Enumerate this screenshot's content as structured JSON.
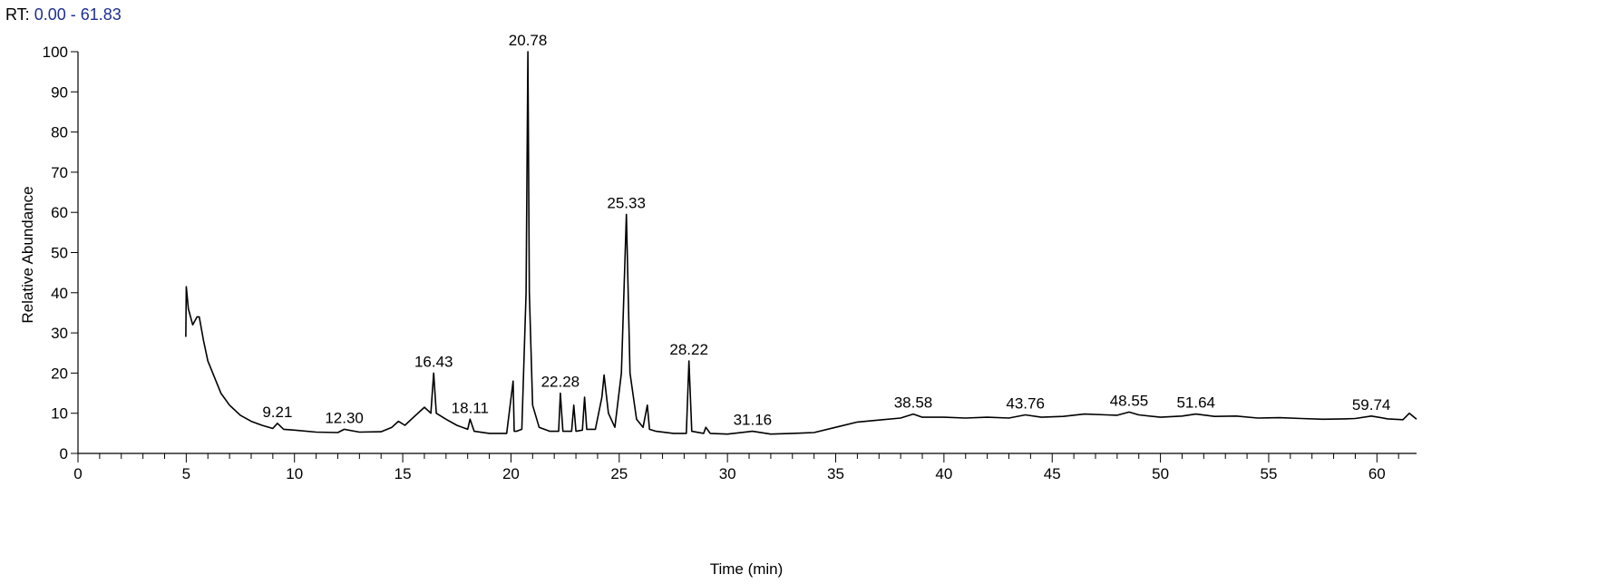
{
  "header": {
    "rt_label": "RT:",
    "rt_range": "0.00 - 61.83"
  },
  "colors": {
    "trace": "#000000",
    "axis": "#000000",
    "rt_range": "#1c2f8f"
  },
  "chart_data": {
    "type": "line",
    "title": "",
    "xlabel": "Time (min)",
    "ylabel": "Relative Abundance",
    "xlim": [
      0,
      61.83
    ],
    "ylim": [
      0,
      100
    ],
    "x_ticks": [
      0,
      5,
      10,
      15,
      20,
      25,
      30,
      35,
      40,
      45,
      50,
      55,
      60
    ],
    "y_ticks": [
      0,
      10,
      20,
      30,
      40,
      50,
      60,
      70,
      80,
      90,
      100
    ],
    "grid": false,
    "legend": "none",
    "series": [
      {
        "x": [
          4.98,
          5.0,
          5.1,
          5.3,
          5.5,
          5.6,
          5.8,
          6.0,
          6.3,
          6.6,
          7.0,
          7.5,
          8.0,
          8.5,
          9.0,
          9.21,
          9.5,
          10.0,
          11.0,
          12.0,
          12.3,
          13.0,
          14.0,
          14.5,
          14.8,
          15.1,
          15.4,
          15.8,
          16.0,
          16.3,
          16.43,
          16.55,
          17.0,
          17.5,
          18.0,
          18.11,
          18.3,
          19.0,
          19.8,
          20.1,
          20.15,
          20.25,
          20.5,
          20.7,
          20.78,
          20.85,
          21.0,
          21.3,
          21.8,
          22.2,
          22.28,
          22.4,
          22.8,
          22.9,
          23.0,
          23.3,
          23.4,
          23.5,
          23.9,
          24.2,
          24.3,
          24.5,
          24.8,
          25.1,
          25.33,
          25.5,
          25.8,
          26.1,
          26.3,
          26.4,
          26.7,
          27.5,
          28.1,
          28.22,
          28.35,
          28.9,
          29.0,
          29.2,
          30.0,
          31.16,
          32.0,
          33.0,
          34.0,
          35.0,
          36.0,
          37.0,
          38.0,
          38.58,
          39.0,
          40.0,
          41.0,
          42.0,
          43.0,
          43.76,
          44.5,
          45.5,
          46.5,
          47.5,
          48.0,
          48.55,
          49.0,
          50.0,
          51.0,
          51.64,
          52.5,
          53.5,
          54.5,
          55.5,
          56.5,
          57.5,
          58.5,
          59.0,
          59.74,
          60.5,
          61.2,
          61.5,
          61.83
        ],
        "y": [
          29.0,
          41.5,
          36.0,
          32.0,
          34.0,
          34.0,
          28.0,
          23.0,
          19.0,
          15.0,
          12.0,
          9.5,
          8.0,
          7.0,
          6.2,
          7.5,
          6.0,
          5.8,
          5.3,
          5.2,
          6.0,
          5.3,
          5.4,
          6.5,
          8.0,
          7.0,
          8.5,
          10.5,
          11.5,
          10.0,
          20.0,
          10.0,
          8.5,
          7.0,
          6.0,
          8.5,
          5.5,
          5.0,
          5.0,
          18.0,
          5.5,
          5.5,
          6.0,
          40.0,
          100.0,
          40.0,
          12.0,
          6.5,
          5.5,
          5.5,
          15.0,
          5.5,
          5.5,
          12.0,
          5.5,
          5.8,
          14.0,
          6.0,
          6.0,
          14.0,
          19.5,
          10.0,
          6.5,
          20.0,
          59.5,
          20.0,
          8.5,
          6.5,
          12.0,
          6.0,
          5.5,
          5.0,
          5.0,
          23.0,
          5.5,
          5.0,
          6.5,
          5.0,
          4.8,
          5.5,
          4.8,
          5.0,
          5.2,
          6.5,
          7.8,
          8.3,
          8.8,
          9.8,
          9.0,
          9.0,
          8.8,
          9.0,
          8.8,
          9.6,
          9.0,
          9.2,
          9.8,
          9.6,
          9.5,
          10.3,
          9.6,
          9.0,
          9.3,
          9.8,
          9.2,
          9.3,
          8.8,
          8.9,
          8.7,
          8.5,
          8.6,
          8.7,
          9.3,
          8.6,
          8.4,
          10.0,
          8.5
        ]
      }
    ],
    "peak_labels": [
      {
        "text": "9.21",
        "x": 9.21,
        "y": 7.5
      },
      {
        "text": "12.30",
        "x": 12.3,
        "y": 6.0
      },
      {
        "text": "16.43",
        "x": 16.43,
        "y": 20.0
      },
      {
        "text": "18.11",
        "x": 18.11,
        "y": 8.5
      },
      {
        "text": "20.78",
        "x": 20.78,
        "y": 100.0
      },
      {
        "text": "22.28",
        "x": 22.28,
        "y": 15.0
      },
      {
        "text": "25.33",
        "x": 25.33,
        "y": 59.5
      },
      {
        "text": "28.22",
        "x": 28.22,
        "y": 23.0
      },
      {
        "text": "31.16",
        "x": 31.16,
        "y": 5.5
      },
      {
        "text": "38.58",
        "x": 38.58,
        "y": 9.8
      },
      {
        "text": "43.76",
        "x": 43.76,
        "y": 9.6
      },
      {
        "text": "48.55",
        "x": 48.55,
        "y": 10.3
      },
      {
        "text": "51.64",
        "x": 51.64,
        "y": 9.8
      },
      {
        "text": "59.74",
        "x": 59.74,
        "y": 9.3
      }
    ]
  }
}
